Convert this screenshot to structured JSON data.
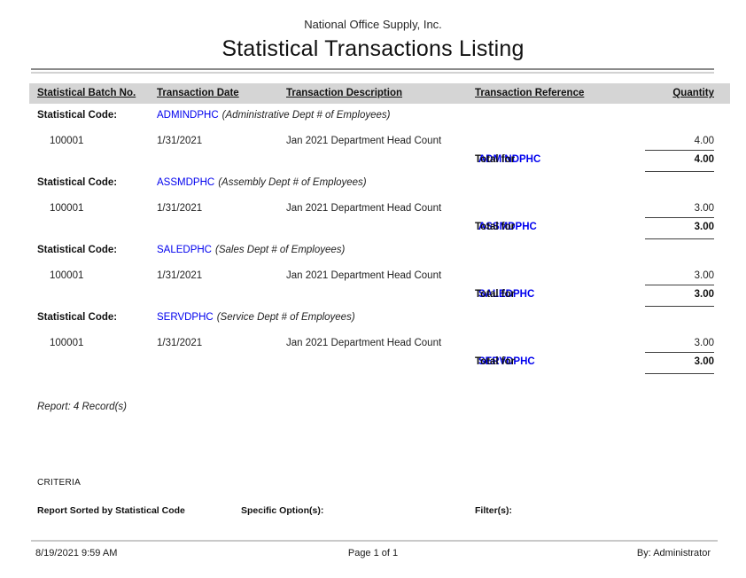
{
  "page": {
    "company": "National Office Supply, Inc.",
    "title": "Statistical Transactions Listing"
  },
  "table": {
    "columns": {
      "batch": "Statistical Batch No.",
      "date": "Transaction Date",
      "description": "Transaction Description",
      "reference": "Transaction Reference",
      "quantity": "Quantity"
    },
    "section_label": "Statistical Code:",
    "total_label": "Total for",
    "sections": [
      {
        "code": "ADMINDPHC",
        "description": "(Administrative Dept # of Employees)",
        "rows": [
          {
            "batch": "100001",
            "date": "1/31/2021",
            "description": "Jan 2021 Department Head Count",
            "quantity": "4.00"
          }
        ],
        "total": "4.00"
      },
      {
        "code": "ASSMDPHC",
        "description": "(Assembly Dept # of Employees)",
        "rows": [
          {
            "batch": "100001",
            "date": "1/31/2021",
            "description": "Jan 2021 Department Head Count",
            "quantity": "3.00"
          }
        ],
        "total": "3.00"
      },
      {
        "code": "SALEDPHC",
        "description": "(Sales Dept # of Employees)",
        "rows": [
          {
            "batch": "100001",
            "date": "1/31/2021",
            "description": "Jan 2021 Department Head Count",
            "quantity": "3.00"
          }
        ],
        "total": "3.00"
      },
      {
        "code": "SERVDPHC",
        "description": "(Service Dept # of Employees)",
        "rows": [
          {
            "batch": "100001",
            "date": "1/31/2021",
            "description": "Jan 2021 Department Head Count",
            "quantity": "3.00"
          }
        ],
        "total": "3.00"
      }
    ],
    "record_summary": "Report: 4 Record(s)"
  },
  "criteria": {
    "heading": "CRITERIA",
    "sorted_by": "Report Sorted by Statistical Code",
    "specific_options": "Specific Option(s):",
    "filters": "Filter(s):"
  },
  "footer": {
    "datetime": "8/19/2021 9:59 AM",
    "page": "Page 1 of 1",
    "by": "By: Administrator"
  },
  "colors": {
    "code_blue": "#0000ee",
    "header_bar": "#d5d5d5"
  }
}
